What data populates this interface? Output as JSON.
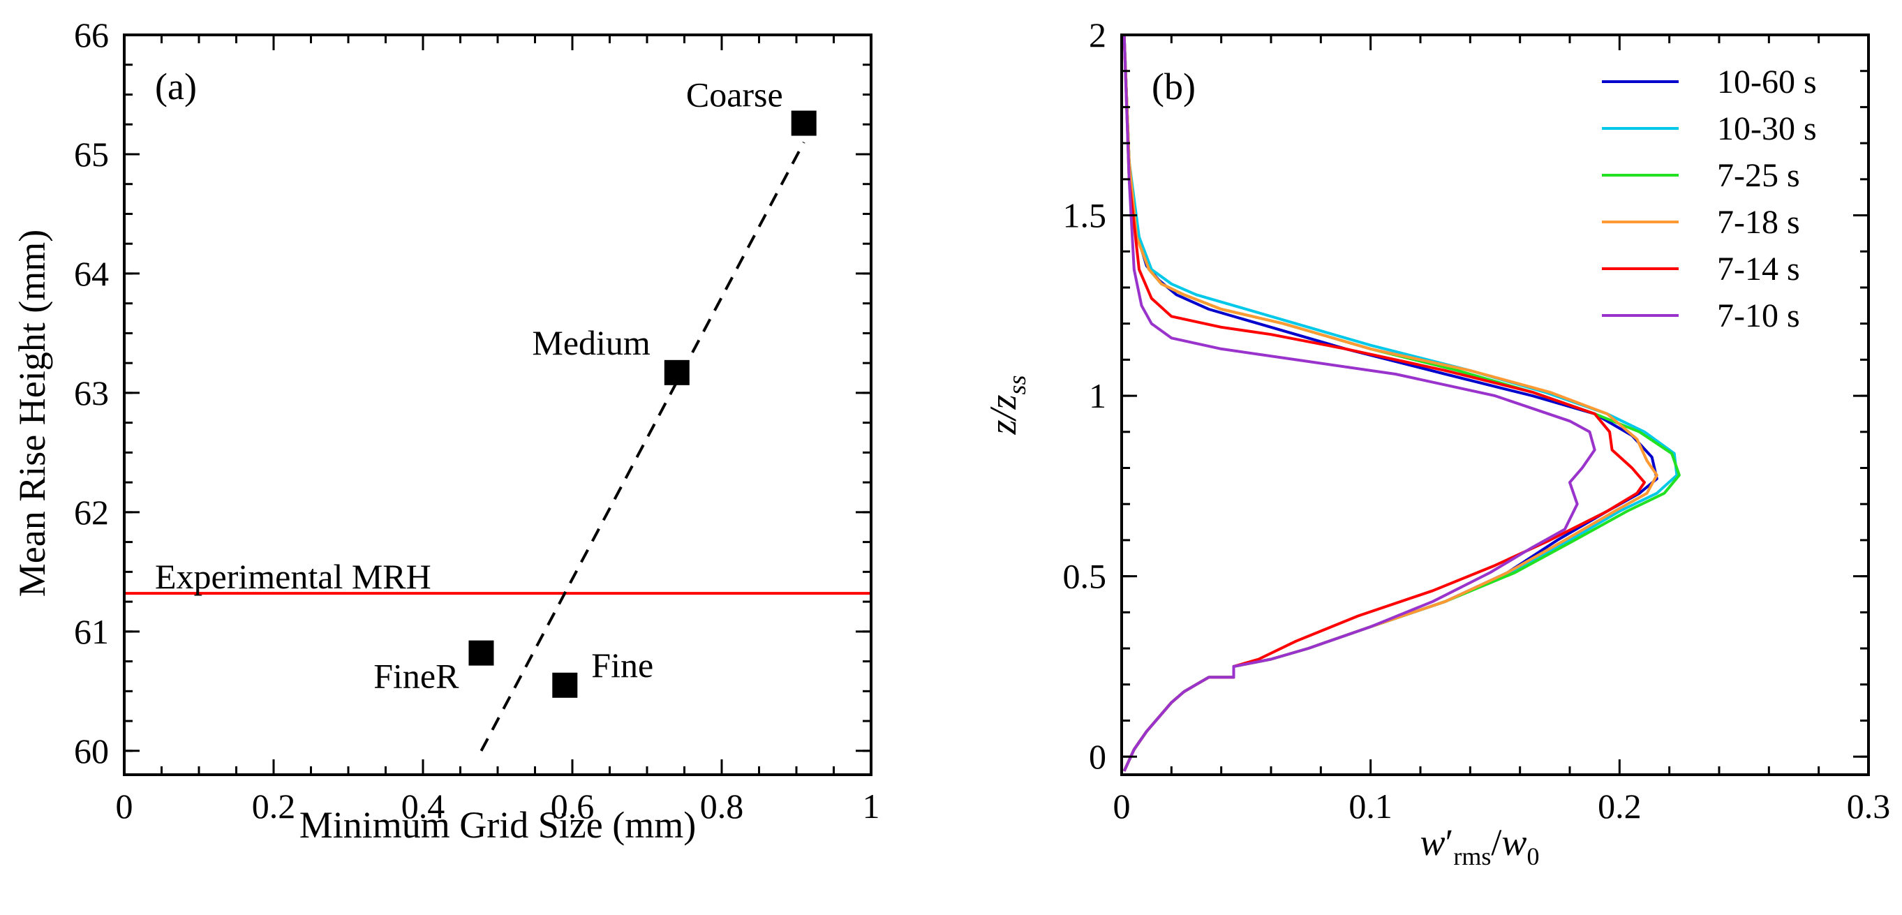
{
  "chart_data": [
    {
      "panel_label": "(a)",
      "type": "scatter",
      "xlabel": "Minimum Grid Size (mm)",
      "ylabel": "Mean Rise Height (mm)",
      "xlim": [
        0,
        1
      ],
      "ylim": [
        59.8,
        66
      ],
      "xticks": [
        0,
        0.2,
        0.4,
        0.6,
        0.8,
        1
      ],
      "xtick_labels": [
        "0",
        "0.2",
        "0.4",
        "0.6",
        "0.8",
        "1"
      ],
      "yticks": [
        60,
        61,
        62,
        63,
        64,
        65,
        66
      ],
      "ytick_labels": [
        "60",
        "61",
        "62",
        "63",
        "64",
        "65",
        "66"
      ],
      "points": [
        {
          "label": "Coarse",
          "x": 0.91,
          "y": 65.26
        },
        {
          "label": "Medium",
          "x": 0.74,
          "y": 63.17
        },
        {
          "label": "FineR",
          "x": 0.478,
          "y": 60.82
        },
        {
          "label": "Fine",
          "x": 0.59,
          "y": 60.55
        }
      ],
      "fit_line": {
        "style": "dashed",
        "x": [
          0.478,
          0.91
        ],
        "y": [
          60.0,
          65.1
        ]
      },
      "reference_line": {
        "label": "Experimental MRH",
        "y": 61.32,
        "color": "#ff0000"
      }
    },
    {
      "panel_label": "(b)",
      "type": "line",
      "xlabel": "w′rms/w0",
      "ylabel": "z/zss",
      "xlim": [
        0,
        0.3
      ],
      "ylim": [
        -0.05,
        2
      ],
      "xticks": [
        0,
        0.1,
        0.2,
        0.3
      ],
      "xtick_labels": [
        "0",
        "0.1",
        "0.2",
        "0.3"
      ],
      "yticks": [
        0,
        0.5,
        1,
        1.5,
        2
      ],
      "ytick_labels": [
        "0",
        "0.5",
        "1",
        "1.5",
        "2"
      ],
      "series": [
        {
          "name": "10-60 s",
          "color": "#0000cc",
          "x": [
            0.001,
            0.005,
            0.01,
            0.015,
            0.02,
            0.025,
            0.03,
            0.035,
            0.045,
            0.045,
            0.06,
            0.075,
            0.1,
            0.13,
            0.155,
            0.175,
            0.195,
            0.208,
            0.215,
            0.213,
            0.205,
            0.19,
            0.165,
            0.13,
            0.09,
            0.055,
            0.035,
            0.022,
            0.015,
            0.01,
            0.006,
            0.003,
            0.001
          ],
          "z": [
            -0.04,
            0.02,
            0.07,
            0.11,
            0.15,
            0.18,
            0.2,
            0.22,
            0.22,
            0.25,
            0.27,
            0.3,
            0.36,
            0.43,
            0.51,
            0.6,
            0.68,
            0.73,
            0.77,
            0.83,
            0.89,
            0.95,
            1.0,
            1.06,
            1.13,
            1.2,
            1.24,
            1.28,
            1.32,
            1.36,
            1.45,
            1.65,
            2.0
          ]
        },
        {
          "name": "10-30 s",
          "color": "#00c8e8",
          "x": [
            0.001,
            0.005,
            0.01,
            0.015,
            0.02,
            0.025,
            0.03,
            0.035,
            0.045,
            0.045,
            0.06,
            0.075,
            0.1,
            0.13,
            0.157,
            0.18,
            0.2,
            0.215,
            0.223,
            0.222,
            0.21,
            0.195,
            0.17,
            0.14,
            0.1,
            0.07,
            0.045,
            0.03,
            0.02,
            0.012,
            0.007,
            0.003,
            0.001
          ],
          "z": [
            -0.04,
            0.02,
            0.07,
            0.11,
            0.15,
            0.18,
            0.2,
            0.22,
            0.22,
            0.25,
            0.27,
            0.3,
            0.36,
            0.43,
            0.51,
            0.6,
            0.68,
            0.73,
            0.78,
            0.84,
            0.9,
            0.95,
            1.01,
            1.07,
            1.14,
            1.2,
            1.25,
            1.28,
            1.31,
            1.35,
            1.44,
            1.65,
            2.0
          ]
        },
        {
          "name": "7-25 s",
          "color": "#22e022",
          "x": [
            0.001,
            0.005,
            0.01,
            0.015,
            0.02,
            0.025,
            0.03,
            0.035,
            0.045,
            0.045,
            0.06,
            0.075,
            0.1,
            0.13,
            0.158,
            0.182,
            0.203,
            0.218,
            0.224,
            0.221,
            0.208,
            0.19,
            0.165,
            0.135,
            0.1,
            0.065,
            0.04,
            0.025,
            0.016,
            0.011,
            0.006,
            0.003,
            0.001
          ],
          "z": [
            -0.04,
            0.02,
            0.07,
            0.11,
            0.15,
            0.18,
            0.2,
            0.22,
            0.22,
            0.25,
            0.27,
            0.3,
            0.36,
            0.43,
            0.51,
            0.6,
            0.68,
            0.73,
            0.78,
            0.84,
            0.9,
            0.95,
            1.01,
            1.07,
            1.13,
            1.2,
            1.24,
            1.28,
            1.31,
            1.35,
            1.44,
            1.65,
            2.0
          ]
        },
        {
          "name": "7-18 s",
          "color": "#ff9933",
          "x": [
            0.001,
            0.005,
            0.01,
            0.015,
            0.02,
            0.025,
            0.03,
            0.035,
            0.045,
            0.045,
            0.06,
            0.075,
            0.1,
            0.13,
            0.155,
            0.178,
            0.198,
            0.211,
            0.215,
            0.211,
            0.207,
            0.195,
            0.172,
            0.14,
            0.1,
            0.065,
            0.04,
            0.025,
            0.016,
            0.011,
            0.006,
            0.003,
            0.001
          ],
          "z": [
            -0.04,
            0.02,
            0.07,
            0.11,
            0.15,
            0.18,
            0.2,
            0.22,
            0.22,
            0.25,
            0.27,
            0.3,
            0.36,
            0.43,
            0.51,
            0.6,
            0.68,
            0.73,
            0.78,
            0.82,
            0.88,
            0.95,
            1.01,
            1.07,
            1.13,
            1.2,
            1.24,
            1.28,
            1.31,
            1.35,
            1.44,
            1.65,
            2.0
          ]
        },
        {
          "name": "7-14 s",
          "color": "#ff0000",
          "x": [
            0.001,
            0.005,
            0.01,
            0.015,
            0.02,
            0.025,
            0.03,
            0.035,
            0.045,
            0.045,
            0.055,
            0.07,
            0.095,
            0.125,
            0.15,
            0.172,
            0.195,
            0.207,
            0.21,
            0.205,
            0.197,
            0.196,
            0.19,
            0.165,
            0.13,
            0.09,
            0.06,
            0.04,
            0.02,
            0.012,
            0.007,
            0.003,
            0.001
          ],
          "z": [
            -0.04,
            0.02,
            0.07,
            0.11,
            0.15,
            0.18,
            0.2,
            0.22,
            0.22,
            0.25,
            0.27,
            0.32,
            0.39,
            0.46,
            0.53,
            0.6,
            0.68,
            0.73,
            0.76,
            0.8,
            0.85,
            0.9,
            0.95,
            1.01,
            1.07,
            1.13,
            1.17,
            1.19,
            1.22,
            1.27,
            1.35,
            1.6,
            2.0
          ]
        },
        {
          "name": "7-10 s",
          "color": "#9933cc",
          "x": [
            0.001,
            0.005,
            0.01,
            0.015,
            0.02,
            0.025,
            0.03,
            0.035,
            0.045,
            0.045,
            0.06,
            0.075,
            0.1,
            0.125,
            0.148,
            0.165,
            0.178,
            0.183,
            0.18,
            0.185,
            0.19,
            0.188,
            0.18,
            0.15,
            0.11,
            0.07,
            0.04,
            0.02,
            0.012,
            0.008,
            0.005,
            0.003,
            0.001
          ],
          "z": [
            -0.04,
            0.02,
            0.07,
            0.11,
            0.15,
            0.18,
            0.2,
            0.22,
            0.22,
            0.25,
            0.27,
            0.3,
            0.36,
            0.43,
            0.51,
            0.58,
            0.63,
            0.7,
            0.76,
            0.8,
            0.85,
            0.9,
            0.93,
            1.0,
            1.06,
            1.1,
            1.13,
            1.16,
            1.2,
            1.25,
            1.35,
            1.6,
            2.0
          ]
        }
      ]
    }
  ]
}
